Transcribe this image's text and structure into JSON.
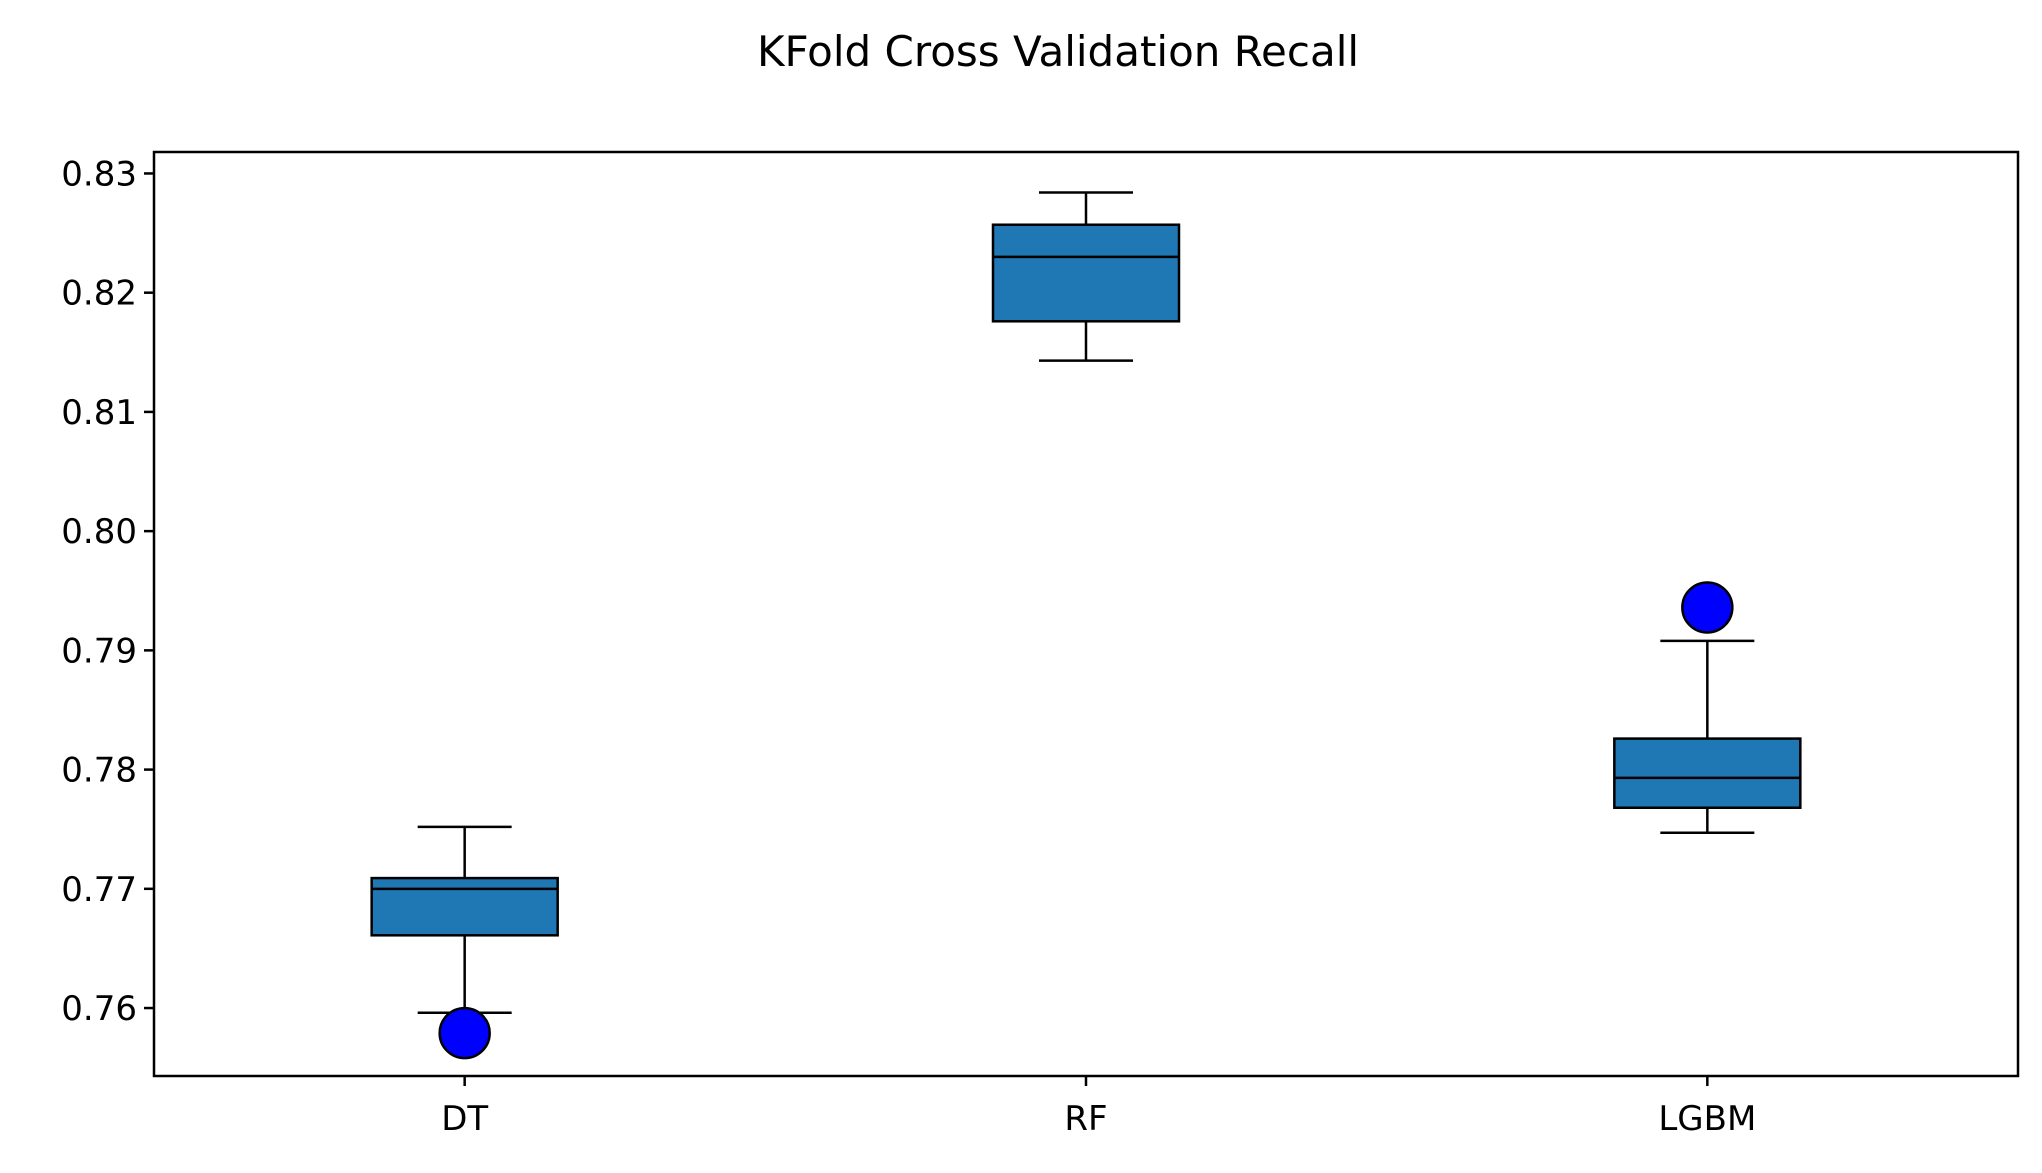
{
  "chart_data": {
    "type": "boxplot",
    "title": "KFold Cross Validation Recall",
    "xlabel": "",
    "ylabel": "",
    "categories": [
      "DT",
      "RF",
      "LGBM"
    ],
    "ylim": [
      0.7543,
      0.8318
    ],
    "yticks": [
      0.76,
      0.77,
      0.78,
      0.79,
      0.8,
      0.81,
      0.82,
      0.83
    ],
    "ytick_labels": [
      "0.76",
      "0.77",
      "0.78",
      "0.79",
      "0.80",
      "0.81",
      "0.82",
      "0.83"
    ],
    "grid": false,
    "legend": "none",
    "boxes": [
      {
        "label": "DT",
        "whisker_low": 0.7596,
        "q1": 0.7661,
        "median": 0.77,
        "q3": 0.7709,
        "whisker_high": 0.7752,
        "outliers": [
          0.7579
        ]
      },
      {
        "label": "RF",
        "whisker_low": 0.8143,
        "q1": 0.8176,
        "median": 0.823,
        "q3": 0.8257,
        "whisker_high": 0.8284,
        "outliers": []
      },
      {
        "label": "LGBM",
        "whisker_low": 0.7747,
        "q1": 0.7768,
        "median": 0.7793,
        "q3": 0.7826,
        "whisker_high": 0.7908,
        "outliers": [
          0.7936
        ]
      }
    ],
    "colors": {
      "box_fill": "#1f77b4",
      "box_edge": "#000000",
      "outlier_fill": "#0000ff",
      "outlier_edge": "#000000",
      "axis": "#000000",
      "background": "#ffffff"
    }
  }
}
